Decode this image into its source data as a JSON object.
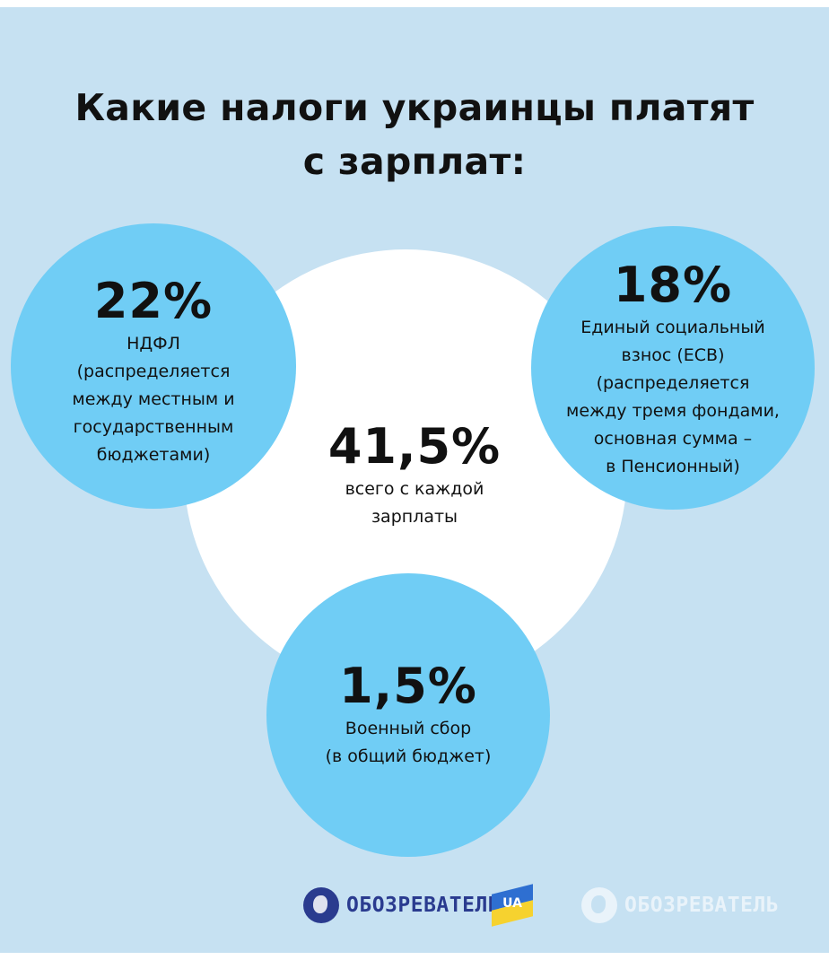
{
  "title": {
    "line1": "Какие налоги украинцы платят",
    "line2": "с зарплат:"
  },
  "total": {
    "percent": "41,5%",
    "lines": [
      "всего с каждой",
      "зарплаты"
    ]
  },
  "ndfl": {
    "percent": "22%",
    "lines": [
      "НДФЛ",
      "(распределяется",
      "между местным и",
      "государственным",
      "бюджетами)"
    ]
  },
  "esv": {
    "percent": "18%",
    "lines": [
      "Единый социальный",
      "взнос (ЕСВ)",
      "(распределяется",
      "между тремя фондами,",
      "основная сумма –",
      "в Пенсионный)"
    ]
  },
  "military": {
    "percent": "1,5%",
    "lines": [
      "Военный сбор",
      "(в общий бюджет)"
    ]
  },
  "logos": {
    "main_text": "ОБОЗРЕВАТЕЛЬ",
    "main_suffix": "UA",
    "watermark_text": "ОБОЗРЕВАТЕЛЬ"
  },
  "colors": {
    "background": "#c6e1f2",
    "circle_blue": "#70cdf5",
    "center_circle": "#ffffff",
    "brand_navy": "#2a3b8f"
  },
  "icons": [
    "globe-icon",
    "ukraine-flag-icon"
  ]
}
